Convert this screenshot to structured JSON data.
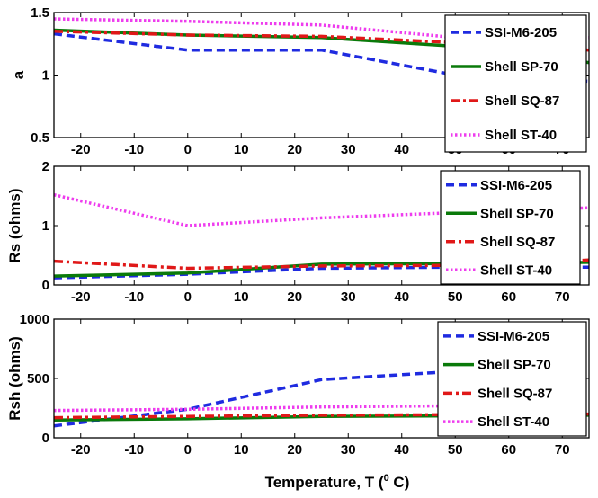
{
  "figure": {
    "xlabel": "Temperature, T",
    "xlabel_unit_sup": "0",
    "xlabel_unit": " C)",
    "xlabel_unit_open": "("
  },
  "colors": {
    "SSI-M6-205": "#1f2be0",
    "Shell SP-70": "#0a7a0a",
    "Shell SQ-87": "#e01818",
    "Shell ST-40": "#ee3cee"
  },
  "chart_data": [
    {
      "type": "line",
      "title": "",
      "xlabel": "",
      "ylabel": "a",
      "xlim": [
        -25,
        75
      ],
      "ylim": [
        0.5,
        1.5
      ],
      "xticks": [
        -20,
        -10,
        0,
        10,
        20,
        30,
        40,
        50,
        60,
        70
      ],
      "xtick_labels": [
        "-20",
        "-10",
        "0",
        "10",
        "20",
        "30",
        "40",
        "50",
        "60",
        "70"
      ],
      "yticks": [
        0.5,
        1,
        1.5
      ],
      "ytick_labels": [
        "0.5",
        "1",
        "1.5"
      ],
      "grid": false,
      "legend": "top-right",
      "series": [
        {
          "name": "SSI-M6-205",
          "style": "dashed",
          "x": [
            -25,
            0,
            25,
            50,
            75
          ],
          "y": [
            1.33,
            1.2,
            1.2,
            1.0,
            0.95
          ]
        },
        {
          "name": "Shell SP-70",
          "style": "solid",
          "x": [
            -25,
            0,
            25,
            50,
            75
          ],
          "y": [
            1.36,
            1.32,
            1.3,
            1.23,
            1.1
          ]
        },
        {
          "name": "Shell SQ-87",
          "style": "dashdot",
          "x": [
            -25,
            0,
            25,
            50,
            75
          ],
          "y": [
            1.35,
            1.32,
            1.31,
            1.26,
            1.2
          ]
        },
        {
          "name": "Shell ST-40",
          "style": "dotted",
          "x": [
            -25,
            0,
            25,
            50,
            75
          ],
          "y": [
            1.45,
            1.43,
            1.4,
            1.3,
            1.3
          ]
        }
      ]
    },
    {
      "type": "line",
      "title": "",
      "xlabel": "",
      "ylabel": "Rs (ohms)",
      "xlim": [
        -25,
        75
      ],
      "ylim": [
        0,
        2
      ],
      "xticks": [
        -20,
        -10,
        0,
        10,
        20,
        30,
        40,
        50,
        60,
        70
      ],
      "xtick_labels": [
        "-20",
        "-10",
        "0",
        "10",
        "20",
        "30",
        "40",
        "50",
        "60",
        "70"
      ],
      "yticks": [
        0,
        1,
        2
      ],
      "ytick_labels": [
        "0",
        "1",
        "2"
      ],
      "grid": false,
      "legend": "right",
      "series": [
        {
          "name": "SSI-M6-205",
          "style": "dashed",
          "x": [
            -25,
            0,
            25,
            50,
            75
          ],
          "y": [
            0.12,
            0.18,
            0.28,
            0.3,
            0.3
          ]
        },
        {
          "name": "Shell SP-70",
          "style": "solid",
          "x": [
            -25,
            0,
            25,
            50,
            75
          ],
          "y": [
            0.15,
            0.2,
            0.35,
            0.36,
            0.38
          ]
        },
        {
          "name": "Shell SQ-87",
          "style": "dashdot",
          "x": [
            -25,
            0,
            25,
            50,
            75
          ],
          "y": [
            0.4,
            0.28,
            0.32,
            0.33,
            0.42
          ]
        },
        {
          "name": "Shell ST-40",
          "style": "dotted",
          "x": [
            -25,
            0,
            25,
            50,
            75
          ],
          "y": [
            1.52,
            1.0,
            1.13,
            1.22,
            1.3
          ]
        }
      ]
    },
    {
      "type": "line",
      "title": "",
      "xlabel": "Temperature, T (0 C)",
      "ylabel": "Rsh (ohms)",
      "xlim": [
        -25,
        75
      ],
      "ylim": [
        0,
        1000
      ],
      "xticks": [
        -20,
        -10,
        0,
        10,
        20,
        30,
        40,
        50,
        60,
        70
      ],
      "xtick_labels": [
        "-20",
        "-10",
        "0",
        "10",
        "20",
        "30",
        "40",
        "50",
        "60",
        "70"
      ],
      "yticks": [
        0,
        500,
        1000
      ],
      "ytick_labels": [
        "0",
        "500",
        "1000"
      ],
      "grid": false,
      "legend": "top-right",
      "series": [
        {
          "name": "SSI-M6-205",
          "style": "dashed",
          "x": [
            -25,
            0,
            25,
            50,
            75
          ],
          "y": [
            100,
            240,
            490,
            560,
            560
          ]
        },
        {
          "name": "Shell SP-70",
          "style": "solid",
          "x": [
            -25,
            0,
            25,
            50,
            75
          ],
          "y": [
            150,
            160,
            180,
            185,
            190
          ]
        },
        {
          "name": "Shell SQ-87",
          "style": "dashdot",
          "x": [
            -25,
            0,
            25,
            50,
            75
          ],
          "y": [
            170,
            180,
            190,
            195,
            200
          ]
        },
        {
          "name": "Shell ST-40",
          "style": "dotted",
          "x": [
            -25,
            0,
            25,
            50,
            75
          ],
          "y": [
            230,
            240,
            260,
            270,
            290
          ]
        }
      ]
    }
  ]
}
